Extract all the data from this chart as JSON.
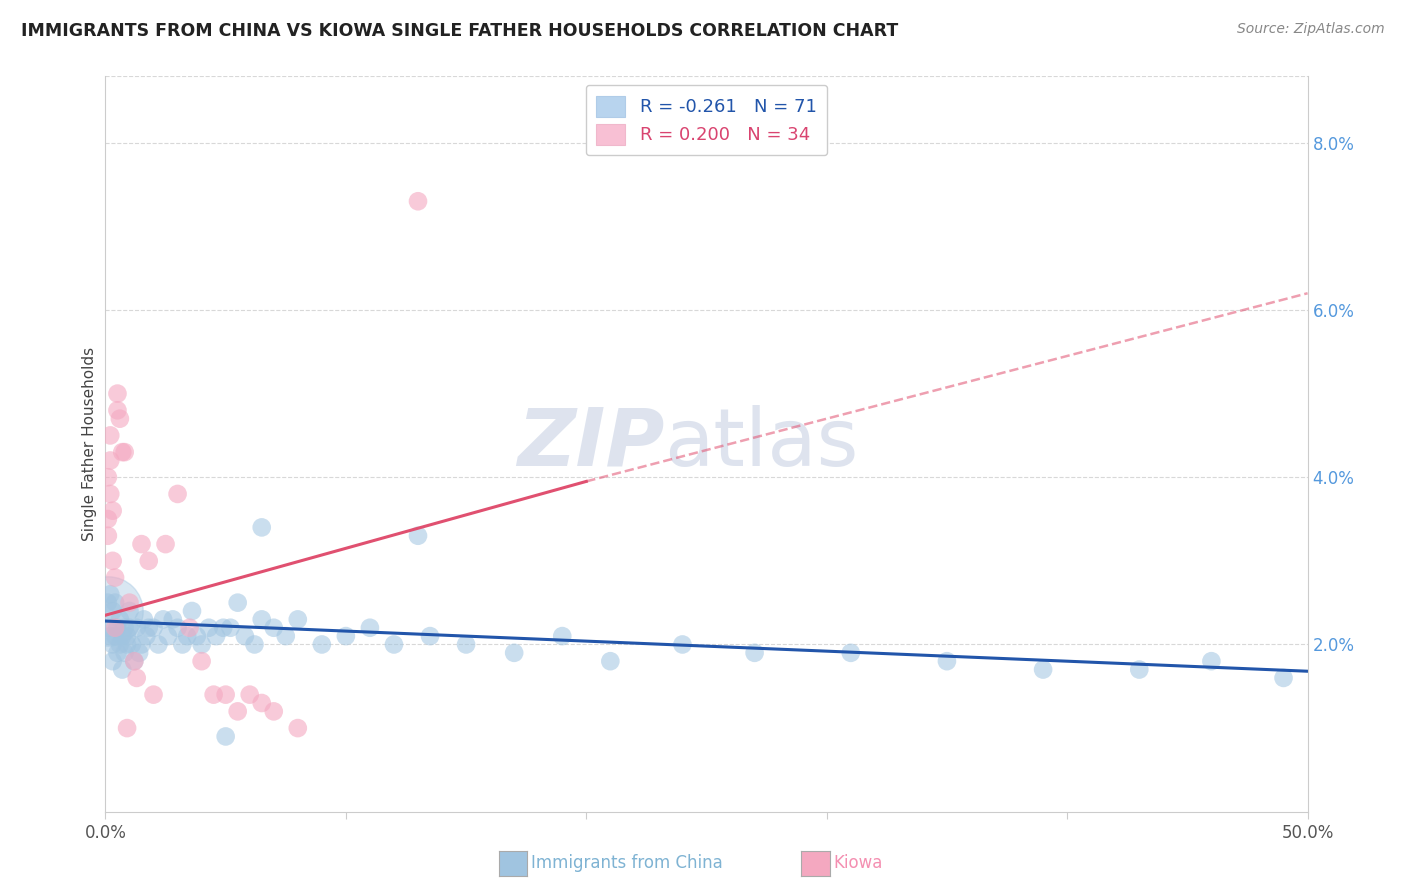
{
  "title": "IMMIGRANTS FROM CHINA VS KIOWA SINGLE FATHER HOUSEHOLDS CORRELATION CHART",
  "source": "Source: ZipAtlas.com",
  "ylabel": "Single Father Households",
  "xlim": [
    0.0,
    0.5
  ],
  "ylim": [
    0.0,
    0.088
  ],
  "background_color": "#ffffff",
  "grid_color": "#d8d8d8",
  "blue_color": "#a0c4e0",
  "pink_color": "#f4a8c0",
  "blue_line_color": "#2255aa",
  "pink_line_color": "#e05070",
  "blue_scatter_x": [
    0.001,
    0.001,
    0.002,
    0.002,
    0.003,
    0.003,
    0.003,
    0.004,
    0.004,
    0.005,
    0.005,
    0.006,
    0.006,
    0.007,
    0.007,
    0.008,
    0.008,
    0.009,
    0.009,
    0.01,
    0.01,
    0.011,
    0.012,
    0.013,
    0.014,
    0.015,
    0.016,
    0.017,
    0.018,
    0.02,
    0.022,
    0.024,
    0.026,
    0.028,
    0.03,
    0.032,
    0.034,
    0.036,
    0.038,
    0.04,
    0.043,
    0.046,
    0.049,
    0.052,
    0.055,
    0.058,
    0.062,
    0.065,
    0.07,
    0.075,
    0.08,
    0.09,
    0.1,
    0.11,
    0.12,
    0.135,
    0.15,
    0.17,
    0.19,
    0.21,
    0.24,
    0.27,
    0.31,
    0.35,
    0.39,
    0.43,
    0.46,
    0.49,
    0.05,
    0.065,
    0.13
  ],
  "blue_scatter_y": [
    0.025,
    0.022,
    0.021,
    0.026,
    0.024,
    0.02,
    0.018,
    0.025,
    0.021,
    0.019,
    0.022,
    0.023,
    0.02,
    0.021,
    0.017,
    0.022,
    0.019,
    0.02,
    0.021,
    0.022,
    0.024,
    0.02,
    0.018,
    0.022,
    0.019,
    0.02,
    0.023,
    0.021,
    0.022,
    0.022,
    0.02,
    0.023,
    0.021,
    0.023,
    0.022,
    0.02,
    0.021,
    0.024,
    0.021,
    0.02,
    0.022,
    0.021,
    0.022,
    0.022,
    0.025,
    0.021,
    0.02,
    0.023,
    0.022,
    0.021,
    0.023,
    0.02,
    0.021,
    0.022,
    0.02,
    0.021,
    0.02,
    0.019,
    0.021,
    0.018,
    0.02,
    0.019,
    0.019,
    0.018,
    0.017,
    0.017,
    0.018,
    0.016,
    0.009,
    0.034,
    0.033
  ],
  "pink_scatter_x": [
    0.001,
    0.001,
    0.001,
    0.002,
    0.002,
    0.002,
    0.003,
    0.003,
    0.004,
    0.004,
    0.005,
    0.005,
    0.006,
    0.007,
    0.008,
    0.009,
    0.01,
    0.012,
    0.013,
    0.015,
    0.018,
    0.02,
    0.025,
    0.03,
    0.035,
    0.04,
    0.045,
    0.05,
    0.055,
    0.06,
    0.065,
    0.07,
    0.08,
    0.13
  ],
  "pink_scatter_y": [
    0.04,
    0.035,
    0.033,
    0.042,
    0.038,
    0.045,
    0.03,
    0.036,
    0.022,
    0.028,
    0.05,
    0.048,
    0.047,
    0.043,
    0.043,
    0.01,
    0.025,
    0.018,
    0.016,
    0.032,
    0.03,
    0.014,
    0.032,
    0.038,
    0.022,
    0.018,
    0.014,
    0.014,
    0.012,
    0.014,
    0.013,
    0.012,
    0.01,
    0.073
  ],
  "blue_line": {
    "x0": 0.0,
    "x1": 0.5,
    "y0": 0.0228,
    "y1": 0.0168
  },
  "pink_line_solid": {
    "x0": 0.0,
    "x1": 0.2,
    "y0": 0.0235,
    "y1": 0.0395
  },
  "pink_line_dashed": {
    "x0": 0.2,
    "x1": 0.5,
    "y0": 0.0395,
    "y1": 0.062
  },
  "right_yticks": [
    0.02,
    0.04,
    0.06,
    0.08
  ],
  "right_yticklabels": [
    "2.0%",
    "4.0%",
    "6.0%",
    "8.0%"
  ],
  "xticks": [
    0.0,
    0.1,
    0.2,
    0.3,
    0.4,
    0.5
  ],
  "xticklabels": [
    "0.0%",
    "",
    "",
    "",
    "",
    "50.0%"
  ],
  "legend_blue_label": "R = -0.261   N = 71",
  "legend_pink_label": "R = 0.200   N = 34",
  "bottom_legend_blue": "Immigrants from China",
  "bottom_legend_pink": "Kiowa"
}
